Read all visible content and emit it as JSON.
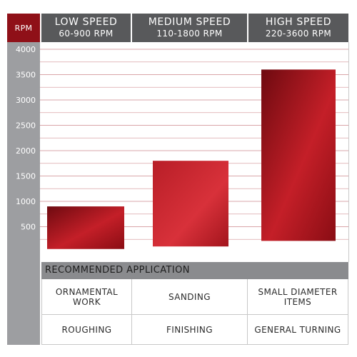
{
  "chart_data": {
    "type": "bar",
    "axis_title": "RPM",
    "categories": [
      "LOW SPEED",
      "MEDIUM SPEED",
      "HIGH SPEED"
    ],
    "ranges": [
      "60-900 RPM",
      "110-1800 RPM",
      "220-3600 RPM"
    ],
    "series": [
      {
        "low": [
          60,
          110,
          220
        ],
        "high": [
          900,
          1800,
          3600
        ]
      }
    ],
    "y_ticks": [
      "500",
      "1000",
      "1500",
      "2000",
      "2500",
      "3000",
      "3500",
      "4000"
    ],
    "ylim": [
      0,
      4000
    ],
    "grid": true,
    "colors": {
      "header": "#58595b",
      "axis": "#9d9ea1",
      "accent": "#8f1018",
      "bar_light": "#d42a33",
      "bar_dark": "#6e0a10",
      "grid": "#d9a5a8"
    }
  },
  "application": {
    "title": "RECOMMENDED APPLICATION",
    "rows": [
      [
        "ORNAMENTAL\nWORK",
        "SANDING",
        "SMALL DIAMETER\nITEMS"
      ],
      [
        "ROUGHING",
        "FINISHING",
        "GENERAL TURNING"
      ]
    ]
  }
}
